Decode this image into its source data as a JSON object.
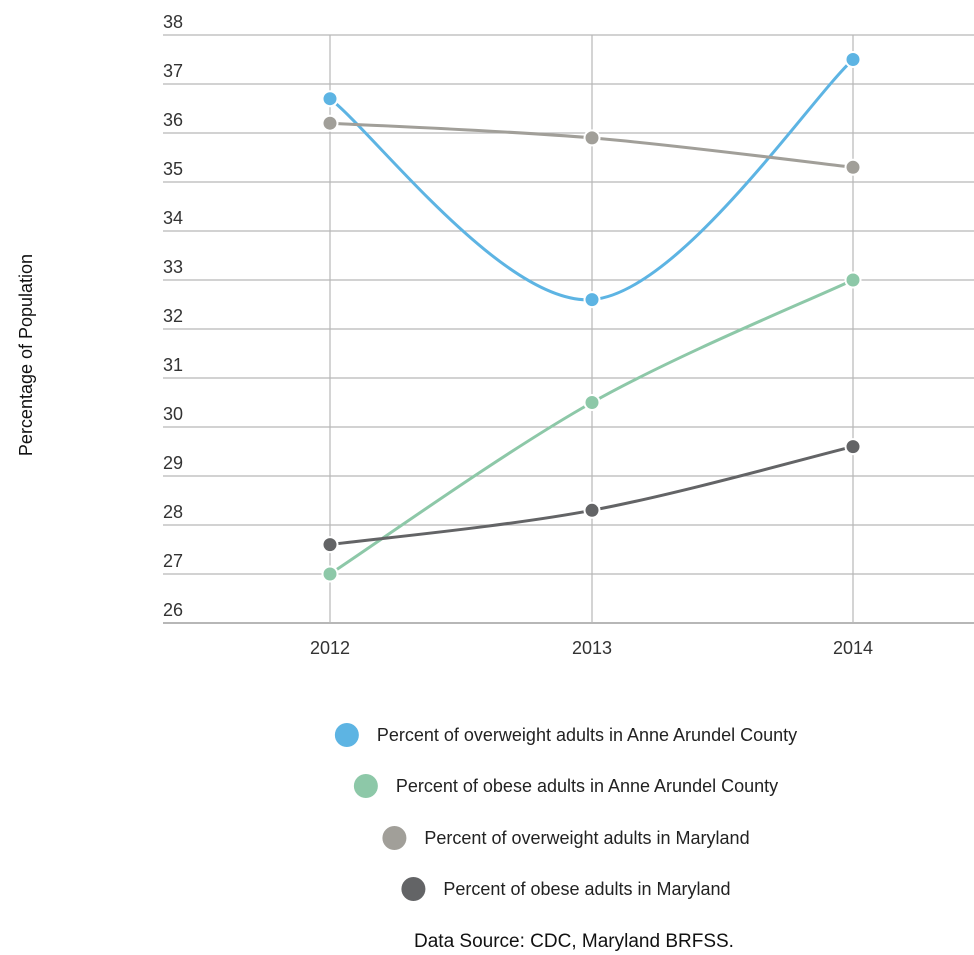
{
  "chart_data": {
    "type": "line",
    "xlabel": "",
    "ylabel": "Percentage of Population",
    "categories": [
      "2012",
      "2013",
      "2014"
    ],
    "ylim": [
      26,
      38
    ],
    "y_ticks": [
      "38",
      "37",
      "36",
      "35",
      "34",
      "33",
      "32",
      "31",
      "30",
      "29",
      "28",
      "27",
      "26"
    ],
    "grid": true,
    "legend_position": "bottom",
    "series": [
      {
        "name": "Percent of overweight adults in Anne Arundel County",
        "color": "#5db4e3",
        "values": [
          36.7,
          32.6,
          37.5
        ],
        "smooth": true
      },
      {
        "name": "Percent of obese adults in Anne Arundel County",
        "color": "#8dc8a8",
        "values": [
          27.0,
          30.5,
          33.0
        ],
        "smooth": true
      },
      {
        "name": "Percent of overweight adults in Maryland",
        "color": "#a19f99",
        "values": [
          36.2,
          35.9,
          35.3
        ],
        "smooth": true
      },
      {
        "name": "Percent of obese adults in Maryland",
        "color": "#636466",
        "values": [
          27.6,
          28.3,
          29.6
        ],
        "smooth": true
      }
    ],
    "source": "Data Source: CDC, Maryland BRFSS."
  }
}
